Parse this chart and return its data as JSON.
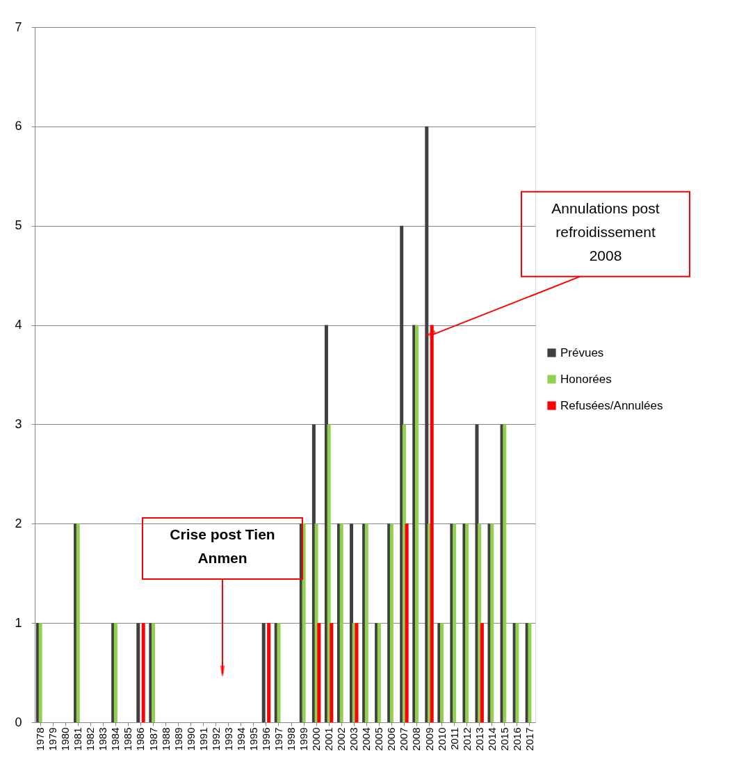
{
  "chart_data": {
    "type": "bar",
    "categories": [
      "1978",
      "1979",
      "1980",
      "1981",
      "1982",
      "1983",
      "1984",
      "1985",
      "1986",
      "1987",
      "1988",
      "1989",
      "1990",
      "1991",
      "1992",
      "1993",
      "1994",
      "1995",
      "1996",
      "1997",
      "1998",
      "1999",
      "2000",
      "2001",
      "2002",
      "2003",
      "2004",
      "2005",
      "2006",
      "2007",
      "2008",
      "2009",
      "2010",
      "2011",
      "2012",
      "2013",
      "2014",
      "2015",
      "2016",
      "2017"
    ],
    "series": [
      {
        "name": "Prévues",
        "color": "#404040",
        "values": [
          1,
          0,
          0,
          2,
          0,
          0,
          1,
          0,
          1,
          1,
          0,
          0,
          0,
          0,
          0,
          0,
          0,
          0,
          1,
          1,
          0,
          2,
          3,
          4,
          2,
          2,
          2,
          1,
          2,
          5,
          4,
          6,
          1,
          2,
          2,
          3,
          2,
          3,
          1,
          1
        ]
      },
      {
        "name": "Honorées",
        "color": "#92d050",
        "values": [
          1,
          0,
          0,
          2,
          0,
          0,
          1,
          0,
          0,
          1,
          0,
          0,
          0,
          0,
          0,
          0,
          0,
          0,
          0,
          1,
          0,
          2,
          2,
          3,
          2,
          1,
          2,
          1,
          2,
          3,
          4,
          2,
          1,
          2,
          2,
          2,
          2,
          3,
          1,
          1
        ]
      },
      {
        "name": "Refusées/Annulées",
        "color": "#ff0000",
        "values": [
          0,
          0,
          0,
          0,
          0,
          0,
          0,
          0,
          1,
          0,
          0,
          0,
          0,
          0,
          0,
          0,
          0,
          0,
          1,
          0,
          0,
          0,
          1,
          1,
          0,
          1,
          0,
          0,
          0,
          2,
          0,
          4,
          0,
          0,
          0,
          1,
          0,
          0,
          0,
          0
        ]
      }
    ],
    "ylim": [
      0,
      7
    ],
    "yticks": [
      0,
      1,
      2,
      3,
      4,
      5,
      6,
      7
    ],
    "grid": "y",
    "legend": "right",
    "annotations": [
      {
        "text": "Annulations post refroidissement 2008",
        "x": "2009",
        "y": 3.9
      },
      "Crise post Tien Anmen"
    ]
  }
}
